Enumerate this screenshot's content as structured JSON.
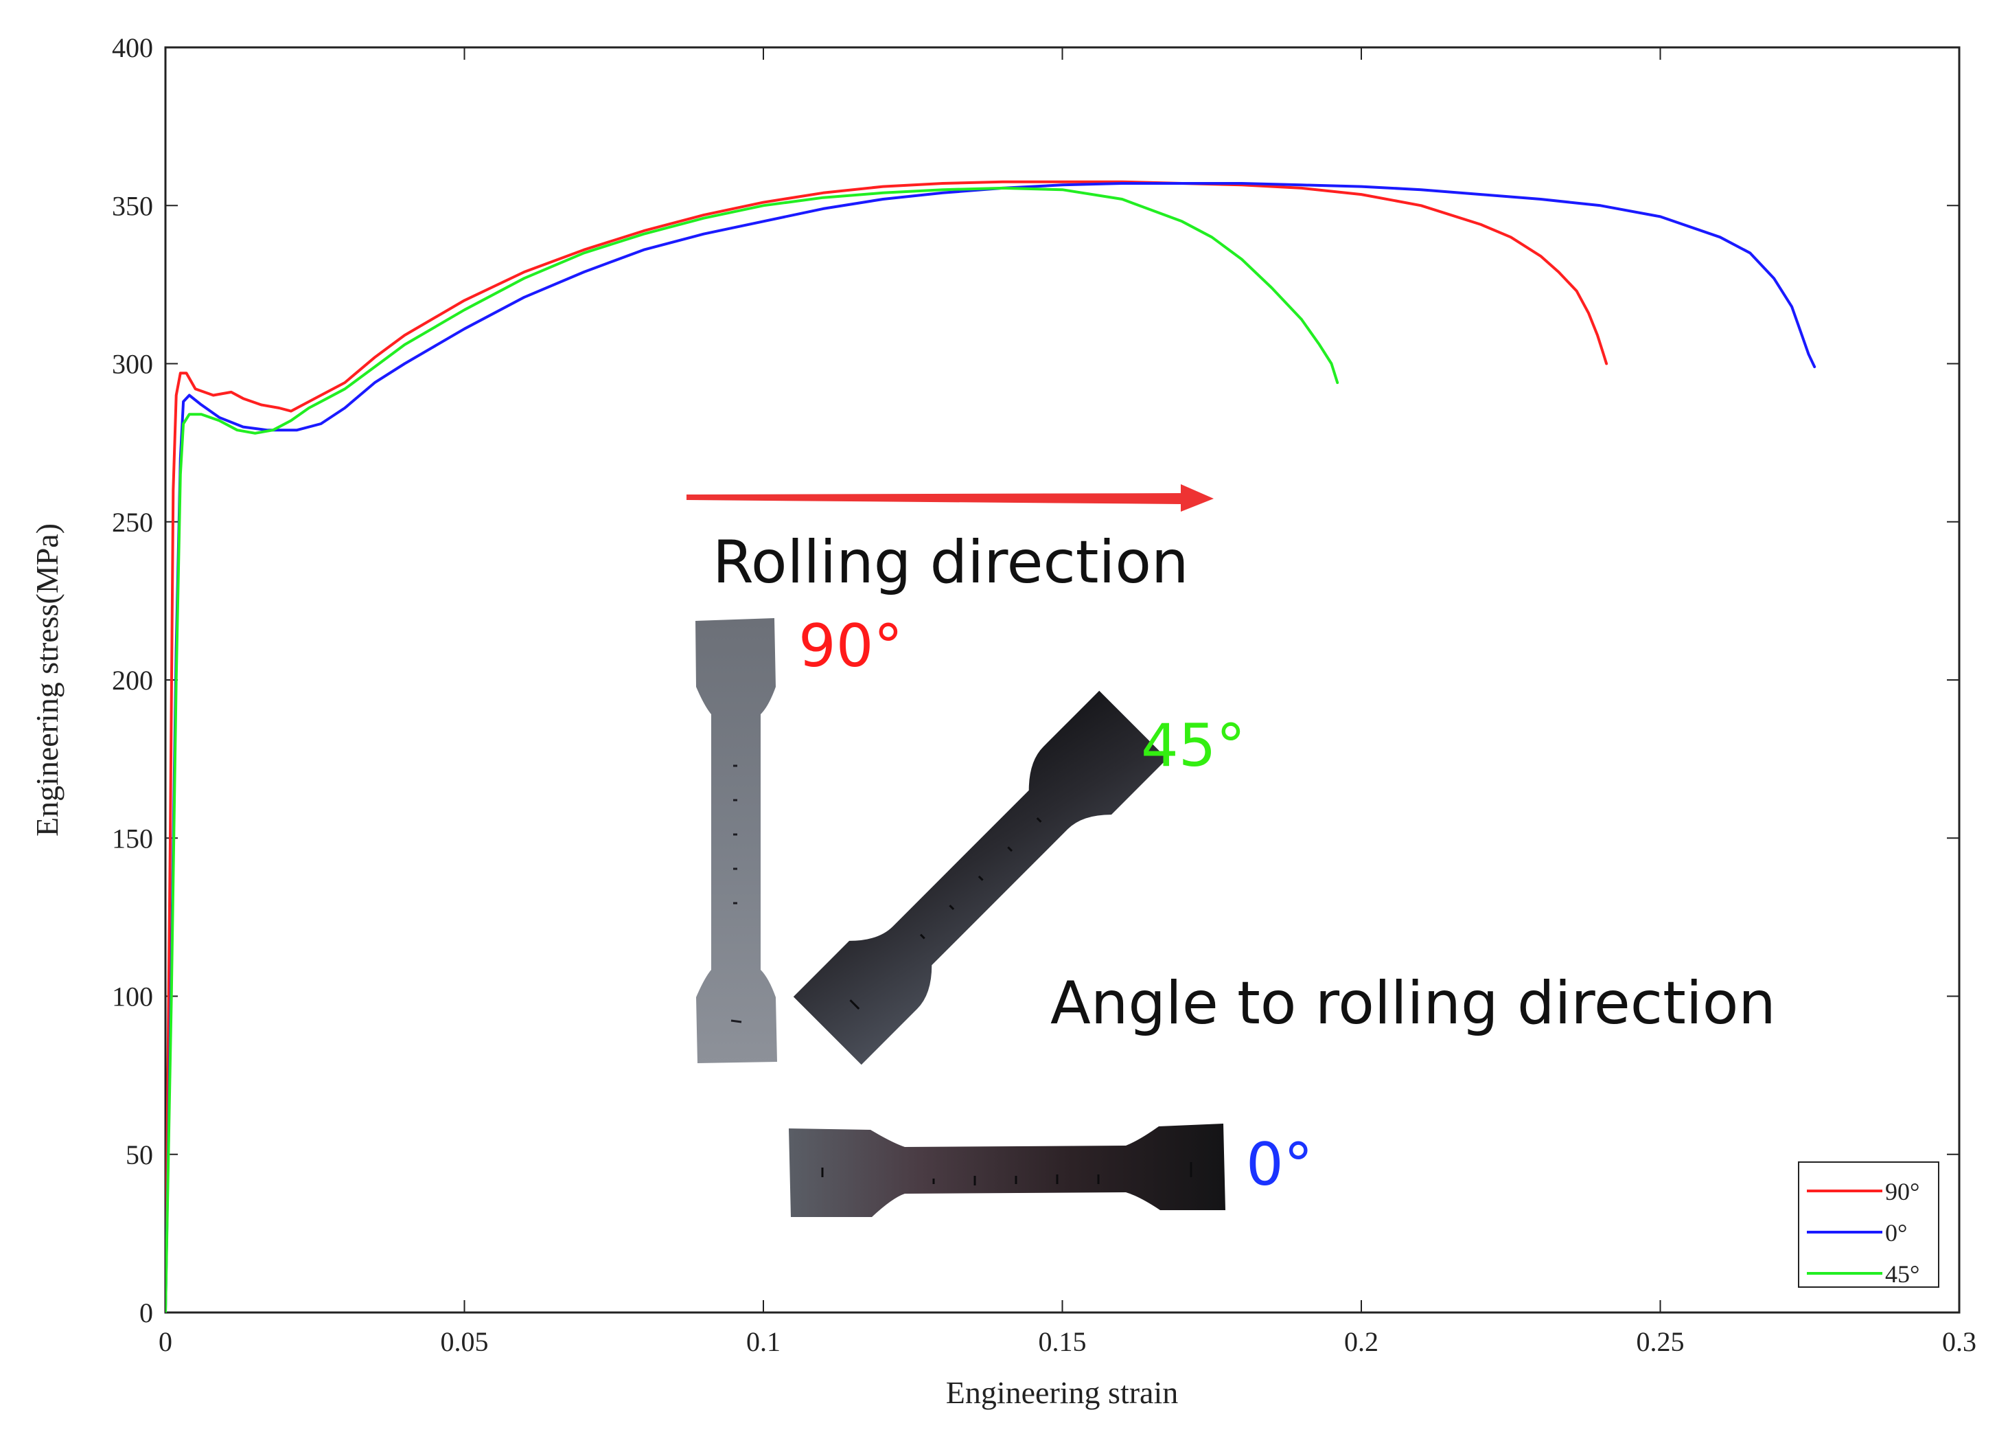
{
  "chart_data": {
    "type": "line",
    "xlabel": "Engineering strain",
    "ylabel": "Engineering stress(MPa)",
    "xlim": [
      0,
      0.3
    ],
    "ylim": [
      0,
      400
    ],
    "xticks": [
      "0",
      "0.05",
      "0.1",
      "0.15",
      "0.2",
      "0.25",
      "0.3"
    ],
    "yticks": [
      "0",
      "50",
      "100",
      "150",
      "200",
      "250",
      "300",
      "350",
      "400"
    ],
    "grid": false,
    "legend_position": "bottom-right",
    "series": [
      {
        "name": "90°",
        "color": "#ff2020",
        "x": [
          0,
          0.0008,
          0.0013,
          0.0018,
          0.0025,
          0.0035,
          0.005,
          0.008,
          0.011,
          0.013,
          0.016,
          0.019,
          0.021,
          0.023,
          0.026,
          0.03,
          0.035,
          0.04,
          0.05,
          0.06,
          0.07,
          0.08,
          0.09,
          0.1,
          0.11,
          0.12,
          0.13,
          0.14,
          0.15,
          0.16,
          0.17,
          0.18,
          0.19,
          0.2,
          0.21,
          0.22,
          0.225,
          0.23,
          0.233,
          0.236,
          0.238,
          0.2395,
          0.2405,
          0.241
        ],
        "y": [
          0,
          150,
          260,
          290,
          297,
          297,
          292,
          290,
          291,
          289,
          287,
          286,
          285,
          287,
          290,
          294,
          302,
          309,
          320,
          329,
          336,
          342,
          347,
          351,
          354,
          356,
          357,
          357.5,
          357.5,
          357.5,
          357,
          356.5,
          355.5,
          353.5,
          350,
          344,
          340,
          334,
          329,
          323,
          316,
          309,
          303,
          300
        ]
      },
      {
        "name": "0°",
        "color": "#1a1aff",
        "x": [
          0,
          0.001,
          0.0018,
          0.0025,
          0.003,
          0.004,
          0.006,
          0.009,
          0.013,
          0.017,
          0.022,
          0.026,
          0.03,
          0.035,
          0.04,
          0.05,
          0.06,
          0.07,
          0.08,
          0.09,
          0.1,
          0.11,
          0.12,
          0.13,
          0.14,
          0.15,
          0.16,
          0.17,
          0.18,
          0.19,
          0.2,
          0.21,
          0.22,
          0.23,
          0.24,
          0.25,
          0.26,
          0.265,
          0.269,
          0.272,
          0.2735,
          0.2748,
          0.2758
        ],
        "y": [
          0,
          110,
          210,
          270,
          288,
          290,
          287,
          283,
          280,
          279,
          279,
          281,
          286,
          294,
          300,
          311,
          321,
          329,
          336,
          341,
          345,
          349,
          352,
          354,
          355.5,
          356.5,
          357,
          357,
          357,
          356.5,
          356,
          355,
          353.5,
          352,
          350,
          346.5,
          340,
          335,
          327,
          318,
          310,
          303,
          299
        ]
      },
      {
        "name": "45°",
        "color": "#22ee22",
        "x": [
          0,
          0.001,
          0.0018,
          0.0025,
          0.003,
          0.004,
          0.006,
          0.009,
          0.012,
          0.015,
          0.018,
          0.021,
          0.024,
          0.027,
          0.03,
          0.035,
          0.04,
          0.05,
          0.06,
          0.07,
          0.08,
          0.09,
          0.1,
          0.11,
          0.12,
          0.13,
          0.14,
          0.15,
          0.16,
          0.17,
          0.175,
          0.18,
          0.185,
          0.19,
          0.193,
          0.195,
          0.196
        ],
        "y": [
          0,
          100,
          200,
          265,
          281,
          284,
          284,
          282,
          279,
          278,
          279,
          282,
          286,
          289,
          292,
          299,
          306,
          317,
          327,
          335,
          341,
          346,
          350,
          352.5,
          354,
          355,
          355.5,
          355,
          352,
          345,
          340,
          333,
          324,
          314,
          306,
          300,
          294
        ]
      }
    ],
    "annotations": {
      "rolling_direction": "Rolling direction",
      "angle_label": "Angle to rolling direction",
      "label_90": "90°",
      "label_45": "45°",
      "label_0": "0°"
    },
    "annotation_colors": {
      "arrow": "#ee3333",
      "label_90": "#ff1a1a",
      "label_45": "#33ee11",
      "label_0": "#1a33ff"
    },
    "specimen_photos": [
      "specimen-90-degree-photo",
      "specimen-45-degree-photo",
      "specimen-0-degree-photo"
    ]
  }
}
